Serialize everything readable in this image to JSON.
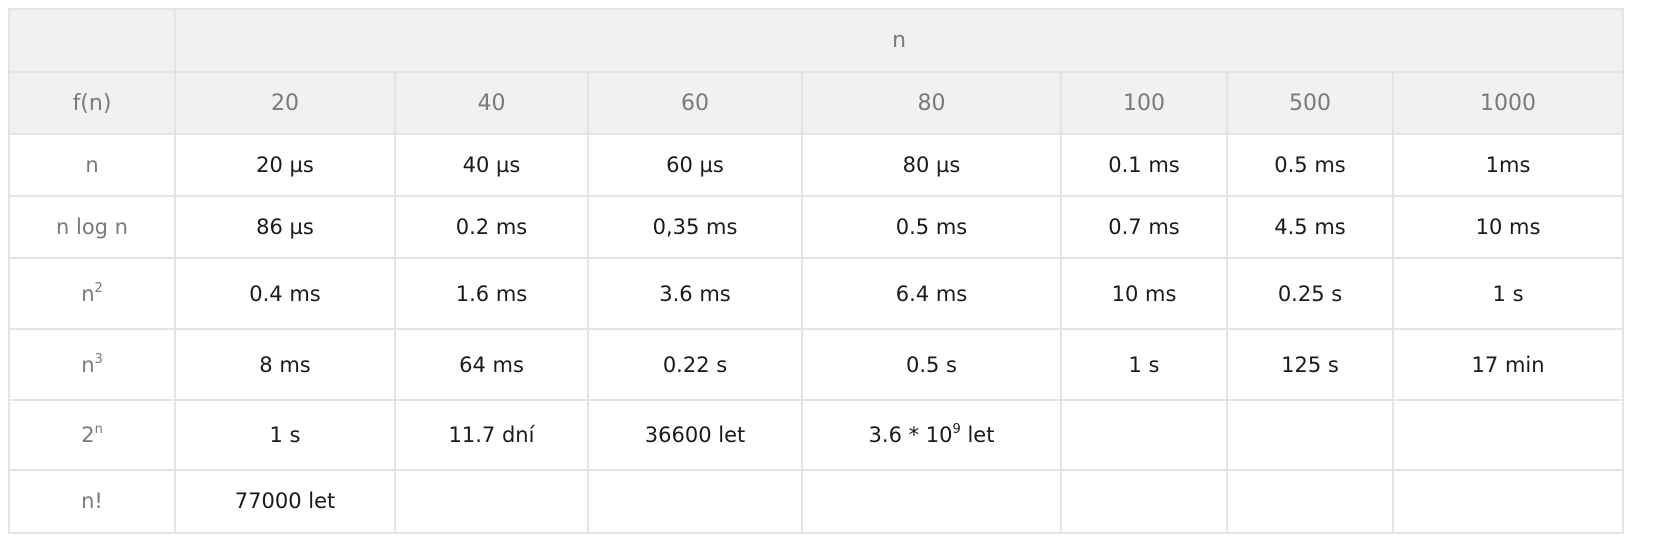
{
  "table": {
    "top_header": "n",
    "corner_label": "f(n)",
    "columns": [
      "20",
      "40",
      "60",
      "80",
      "100",
      "500",
      "1000"
    ],
    "rows": [
      {
        "label": {
          "base": "n",
          "exp": ""
        },
        "cells": [
          {
            "text": "20 µs",
            "exp": "",
            "suffix": ""
          },
          {
            "text": "40 µs",
            "exp": "",
            "suffix": ""
          },
          {
            "text": "60 µs",
            "exp": "",
            "suffix": ""
          },
          {
            "text": "80 µs",
            "exp": "",
            "suffix": ""
          },
          {
            "text": "0.1 ms",
            "exp": "",
            "suffix": ""
          },
          {
            "text": "0.5 ms",
            "exp": "",
            "suffix": ""
          },
          {
            "text": "1ms",
            "exp": "",
            "suffix": ""
          }
        ]
      },
      {
        "label": {
          "base": "n log n",
          "exp": ""
        },
        "cells": [
          {
            "text": "86 µs",
            "exp": "",
            "suffix": ""
          },
          {
            "text": "0.2 ms",
            "exp": "",
            "suffix": ""
          },
          {
            "text": "0,35 ms",
            "exp": "",
            "suffix": ""
          },
          {
            "text": "0.5 ms",
            "exp": "",
            "suffix": ""
          },
          {
            "text": "0.7 ms",
            "exp": "",
            "suffix": ""
          },
          {
            "text": "4.5 ms",
            "exp": "",
            "suffix": ""
          },
          {
            "text": "10 ms",
            "exp": "",
            "suffix": ""
          }
        ]
      },
      {
        "label": {
          "base": "n",
          "exp": "2"
        },
        "cells": [
          {
            "text": "0.4 ms",
            "exp": "",
            "suffix": ""
          },
          {
            "text": "1.6 ms",
            "exp": "",
            "suffix": ""
          },
          {
            "text": "3.6 ms",
            "exp": "",
            "suffix": ""
          },
          {
            "text": "6.4 ms",
            "exp": "",
            "suffix": ""
          },
          {
            "text": "10 ms",
            "exp": "",
            "suffix": ""
          },
          {
            "text": "0.25 s",
            "exp": "",
            "suffix": ""
          },
          {
            "text": "1 s",
            "exp": "",
            "suffix": ""
          }
        ]
      },
      {
        "label": {
          "base": "n",
          "exp": "3"
        },
        "cells": [
          {
            "text": "8 ms",
            "exp": "",
            "suffix": ""
          },
          {
            "text": "64 ms",
            "exp": "",
            "suffix": ""
          },
          {
            "text": "0.22 s",
            "exp": "",
            "suffix": ""
          },
          {
            "text": "0.5 s",
            "exp": "",
            "suffix": ""
          },
          {
            "text": "1 s",
            "exp": "",
            "suffix": ""
          },
          {
            "text": "125 s",
            "exp": "",
            "suffix": ""
          },
          {
            "text": "17 min",
            "exp": "",
            "suffix": ""
          }
        ]
      },
      {
        "label": {
          "base": "2",
          "exp": "n"
        },
        "cells": [
          {
            "text": "1 s",
            "exp": "",
            "suffix": ""
          },
          {
            "text": "11.7 dní",
            "exp": "",
            "suffix": ""
          },
          {
            "text": "36600 let",
            "exp": "",
            "suffix": ""
          },
          {
            "text": "3.6 * 10",
            "exp": "9",
            "suffix": " let"
          },
          {
            "text": "",
            "exp": "",
            "suffix": ""
          },
          {
            "text": "",
            "exp": "",
            "suffix": ""
          },
          {
            "text": "",
            "exp": "",
            "suffix": ""
          }
        ]
      },
      {
        "label": {
          "base": "n!",
          "exp": ""
        },
        "cells": [
          {
            "text": "77000 let",
            "exp": "",
            "suffix": ""
          },
          {
            "text": "",
            "exp": "",
            "suffix": ""
          },
          {
            "text": "",
            "exp": "",
            "suffix": ""
          },
          {
            "text": "",
            "exp": "",
            "suffix": ""
          },
          {
            "text": "",
            "exp": "",
            "suffix": ""
          },
          {
            "text": "",
            "exp": "",
            "suffix": ""
          },
          {
            "text": "",
            "exp": "",
            "suffix": ""
          }
        ]
      }
    ]
  }
}
